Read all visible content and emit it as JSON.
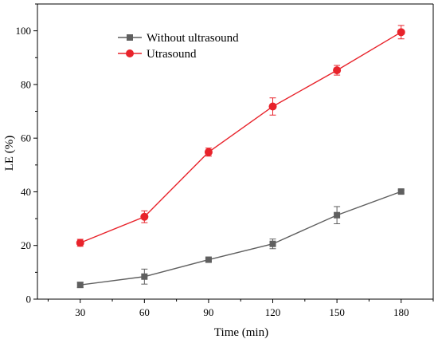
{
  "chart_data": {
    "type": "line",
    "xlabel": "Time (min)",
    "ylabel": "LE (%)",
    "x": [
      30,
      60,
      90,
      120,
      150,
      180
    ],
    "xticks": [
      "30",
      "60",
      "90",
      "120",
      "150",
      "180"
    ],
    "yticks": [
      "0",
      "20",
      "40",
      "60",
      "80",
      "100"
    ],
    "xlim": [
      10,
      195
    ],
    "ylim": [
      0,
      110
    ],
    "grid": false,
    "legend_position": "top-center",
    "series": [
      {
        "name": "Without ultrasound",
        "marker": "square",
        "color": "#5f5f5f",
        "values": [
          5.3,
          8.4,
          14.7,
          20.6,
          31.3,
          40.1
        ],
        "errors": [
          1.0,
          2.8,
          0.5,
          1.8,
          3.2,
          0.6
        ]
      },
      {
        "name": "Utrasound",
        "marker": "circle",
        "color": "#e8232b",
        "values": [
          21.0,
          30.7,
          54.8,
          71.8,
          85.3,
          99.5
        ],
        "errors": [
          1.3,
          2.2,
          1.5,
          3.2,
          1.8,
          2.5
        ]
      }
    ]
  }
}
